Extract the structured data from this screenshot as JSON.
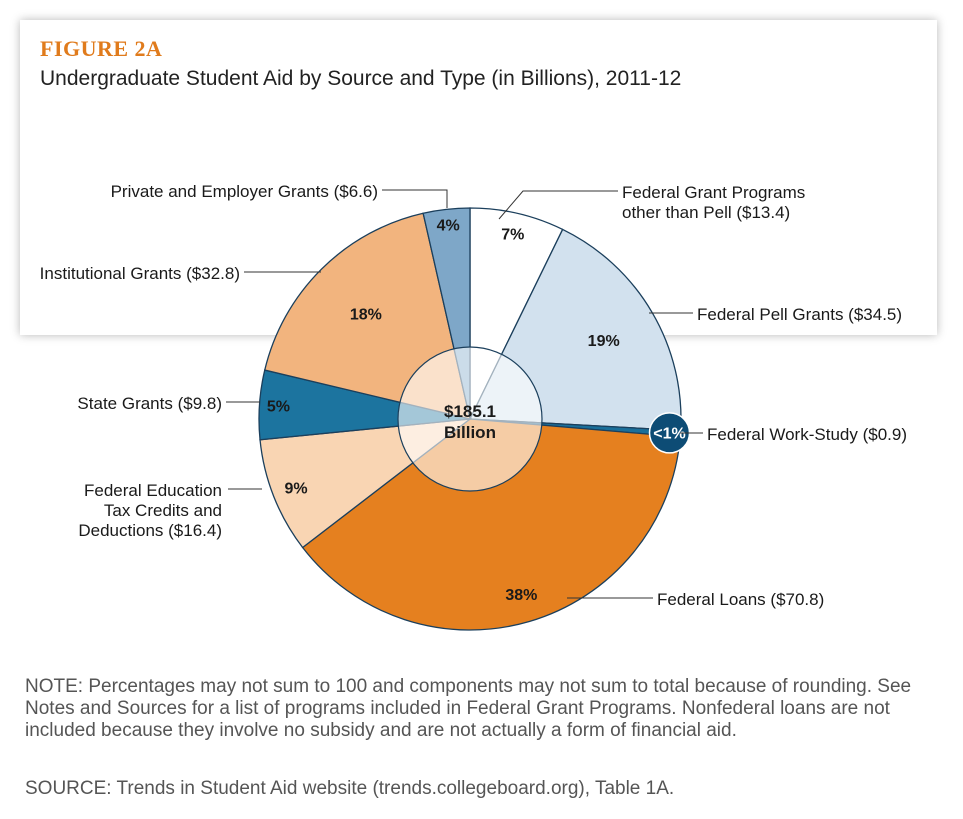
{
  "figure": {
    "label": "FIGURE 2A",
    "title": "Undergraduate Student Aid by Source and Type (in Billions), 2011-12",
    "label_color": "#e07b1c"
  },
  "chart_data": {
    "type": "pie",
    "title": "Undergraduate Student Aid by Source and Type (in Billions), 2011-12",
    "center_label": [
      "$185.1",
      "Billion"
    ],
    "total": 185.1,
    "unit": "billions of dollars",
    "slices": [
      {
        "name": "Federal Grant Programs other than Pell",
        "label_lines": [
          "Federal Grant Programs",
          "other than Pell ($13.4)"
        ],
        "value": 13.4,
        "pct_label": "7%",
        "color": "#ffffff"
      },
      {
        "name": "Federal Pell Grants",
        "label_lines": [
          "Federal Pell Grants ($34.5)"
        ],
        "value": 34.5,
        "pct_label": "19%",
        "color": "#d2e1ee"
      },
      {
        "name": "Federal Work-Study",
        "label_lines": [
          "Federal Work-Study ($0.9)"
        ],
        "value": 0.9,
        "pct_label": "<1%",
        "color": "#1a6f9a"
      },
      {
        "name": "Federal Loans",
        "label_lines": [
          "Federal Loans ($70.8)"
        ],
        "value": 70.8,
        "pct_label": "38%",
        "color": "#e5801f"
      },
      {
        "name": "Federal Education Tax Credits and Deductions",
        "label_lines": [
          "Federal Education",
          "Tax Credits and",
          "Deductions ($16.4)"
        ],
        "value": 16.4,
        "pct_label": "9%",
        "color": "#f9d5b3"
      },
      {
        "name": "State Grants",
        "label_lines": [
          "State Grants ($9.8)"
        ],
        "value": 9.8,
        "pct_label": "5%",
        "color": "#1c749f"
      },
      {
        "name": "Institutional Grants",
        "label_lines": [
          "Institutional Grants ($32.8)"
        ],
        "value": 32.8,
        "pct_label": "18%",
        "color": "#f2b47e"
      },
      {
        "name": "Private and Employer Grants",
        "label_lines": [
          "Private and Employer Grants ($6.6)"
        ],
        "value": 6.6,
        "pct_label": "4%",
        "color": "#7ea7c8"
      }
    ]
  },
  "note": "NOTE: Percentages may not sum to 100 and components may not sum to total because of rounding. See Notes and Sources for a list of programs included in Federal Grant Programs. Nonfederal loans are not included because they involve no subsidy and are not actually a form of financial aid.",
  "source": "SOURCE: Trends in Student Aid website (trends.collegeboard.org), Table 1A."
}
